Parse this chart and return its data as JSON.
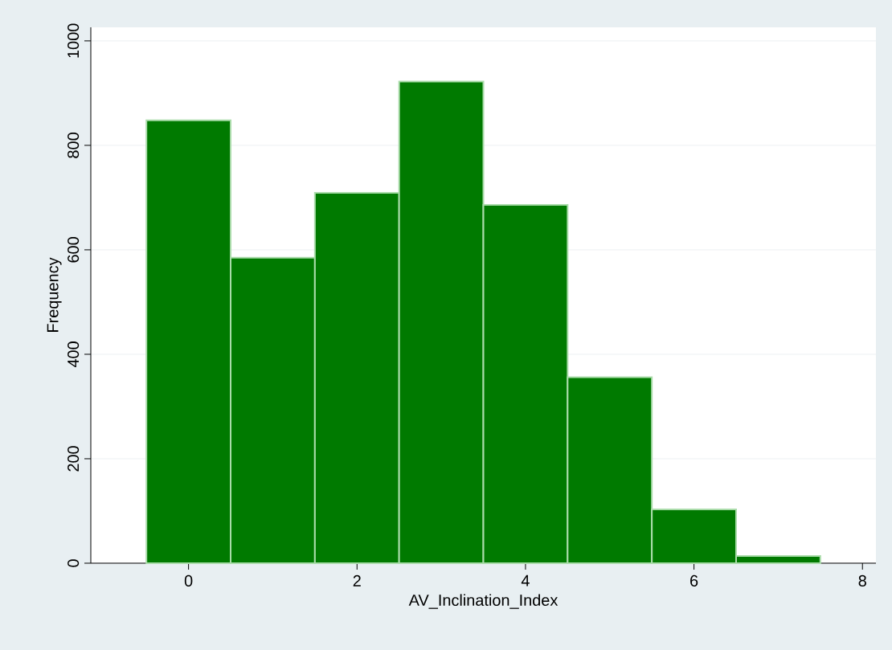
{
  "chart_data": {
    "type": "histogram",
    "xlabel": "AV_Inclination_Index",
    "ylabel": "Frequency",
    "bins": [
      -0.5,
      0.5,
      1.5,
      2.5,
      3.5,
      4.5,
      5.5,
      6.5,
      7.5
    ],
    "values": [
      848,
      585,
      709,
      922,
      686,
      356,
      103,
      14
    ],
    "color": "#007a00",
    "xlim": [
      -1.16,
      8.16
    ],
    "ylim": [
      0,
      1026
    ],
    "xticks": [
      0,
      2,
      4,
      6,
      8
    ],
    "yticks": [
      0,
      200,
      400,
      600,
      800,
      1000
    ],
    "grid": "y"
  }
}
